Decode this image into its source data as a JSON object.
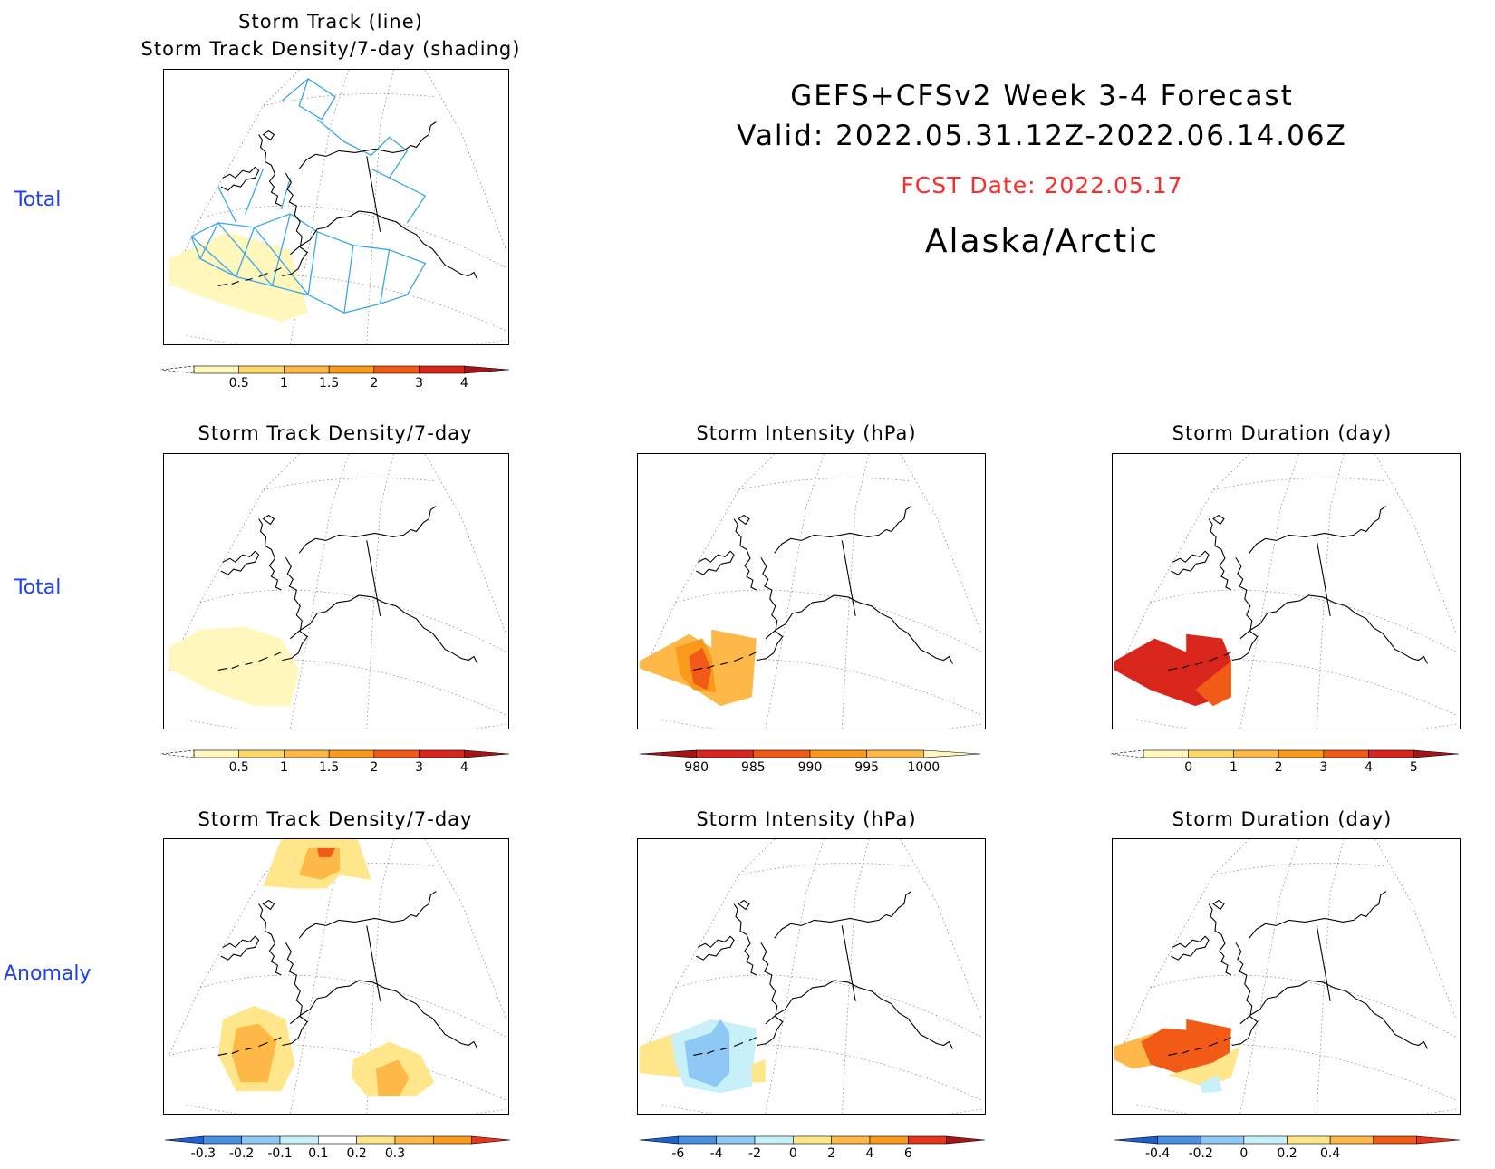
{
  "header": {
    "line1": "GEFS+CFSv2 Week 3-4 Forecast",
    "line2": "Valid: 2022.05.31.12Z-2022.06.14.06Z",
    "fcst": "FCST Date: 2022.05.17",
    "region": "Alaska/Arctic"
  },
  "rows": {
    "r1": "Total",
    "r2": "Total",
    "r3": "Anomaly"
  },
  "titles": {
    "p1a": "Storm Track (line)",
    "p1b": "Storm Track Density/7-day (shading)",
    "p2": "Storm Track Density/7-day",
    "p3": "Storm Intensity (hPa)",
    "p4": "Storm Duration (day)",
    "p5": "Storm Track Density/7-day",
    "p6": "Storm Intensity (hPa)",
    "p7": "Storm Duration (day)"
  },
  "colorbars": {
    "density": {
      "labels": [
        "0.5",
        "1",
        "1.5",
        "2",
        "3",
        "4"
      ],
      "colors": [
        "#fff7bc",
        "#fdd86b",
        "#fdb847",
        "#f99a1c",
        "#f25a17",
        "#d9261c",
        "#a61515"
      ]
    },
    "intensity": {
      "labels": [
        "980",
        "985",
        "990",
        "995",
        "1000"
      ],
      "colors": [
        "#a61515",
        "#d9261c",
        "#f25a17",
        "#f99a1c",
        "#fdb847",
        "#fff7bc"
      ]
    },
    "duration": {
      "labels": [
        "0",
        "1",
        "2",
        "3",
        "4",
        "5"
      ],
      "colors": [
        "#fff7bc",
        "#fdd86b",
        "#fdb847",
        "#f99a1c",
        "#f25a17",
        "#d9261c",
        "#a61515"
      ]
    },
    "anom_density": {
      "labels": [
        "-0.3",
        "-0.2",
        "-0.1",
        "0.1",
        "0.2",
        "0.3"
      ],
      "colors": [
        "#1e5fcf",
        "#4a90e2",
        "#8ec8f5",
        "#c8f0f8",
        "#ffffff",
        "#ffe68a",
        "#fdb847",
        "#f99a1c",
        "#e8341c"
      ]
    },
    "anom_intensity": {
      "labels": [
        "-6",
        "-4",
        "-2",
        "0",
        "2",
        "4",
        "6"
      ],
      "colors": [
        "#1e5fcf",
        "#4a90e2",
        "#8ec8f5",
        "#c8f0f8",
        "#ffe68a",
        "#fdb847",
        "#f99a1c",
        "#e8341c",
        "#a61515"
      ]
    },
    "anom_duration": {
      "labels": [
        "-0.4",
        "-0.2",
        "0",
        "0.2",
        "0.4"
      ],
      "colors": [
        "#1e5fcf",
        "#4a90e2",
        "#8ec8f5",
        "#c8f0f8",
        "#ffe68a",
        "#fdb847",
        "#f25a17",
        "#e8341c"
      ]
    }
  }
}
